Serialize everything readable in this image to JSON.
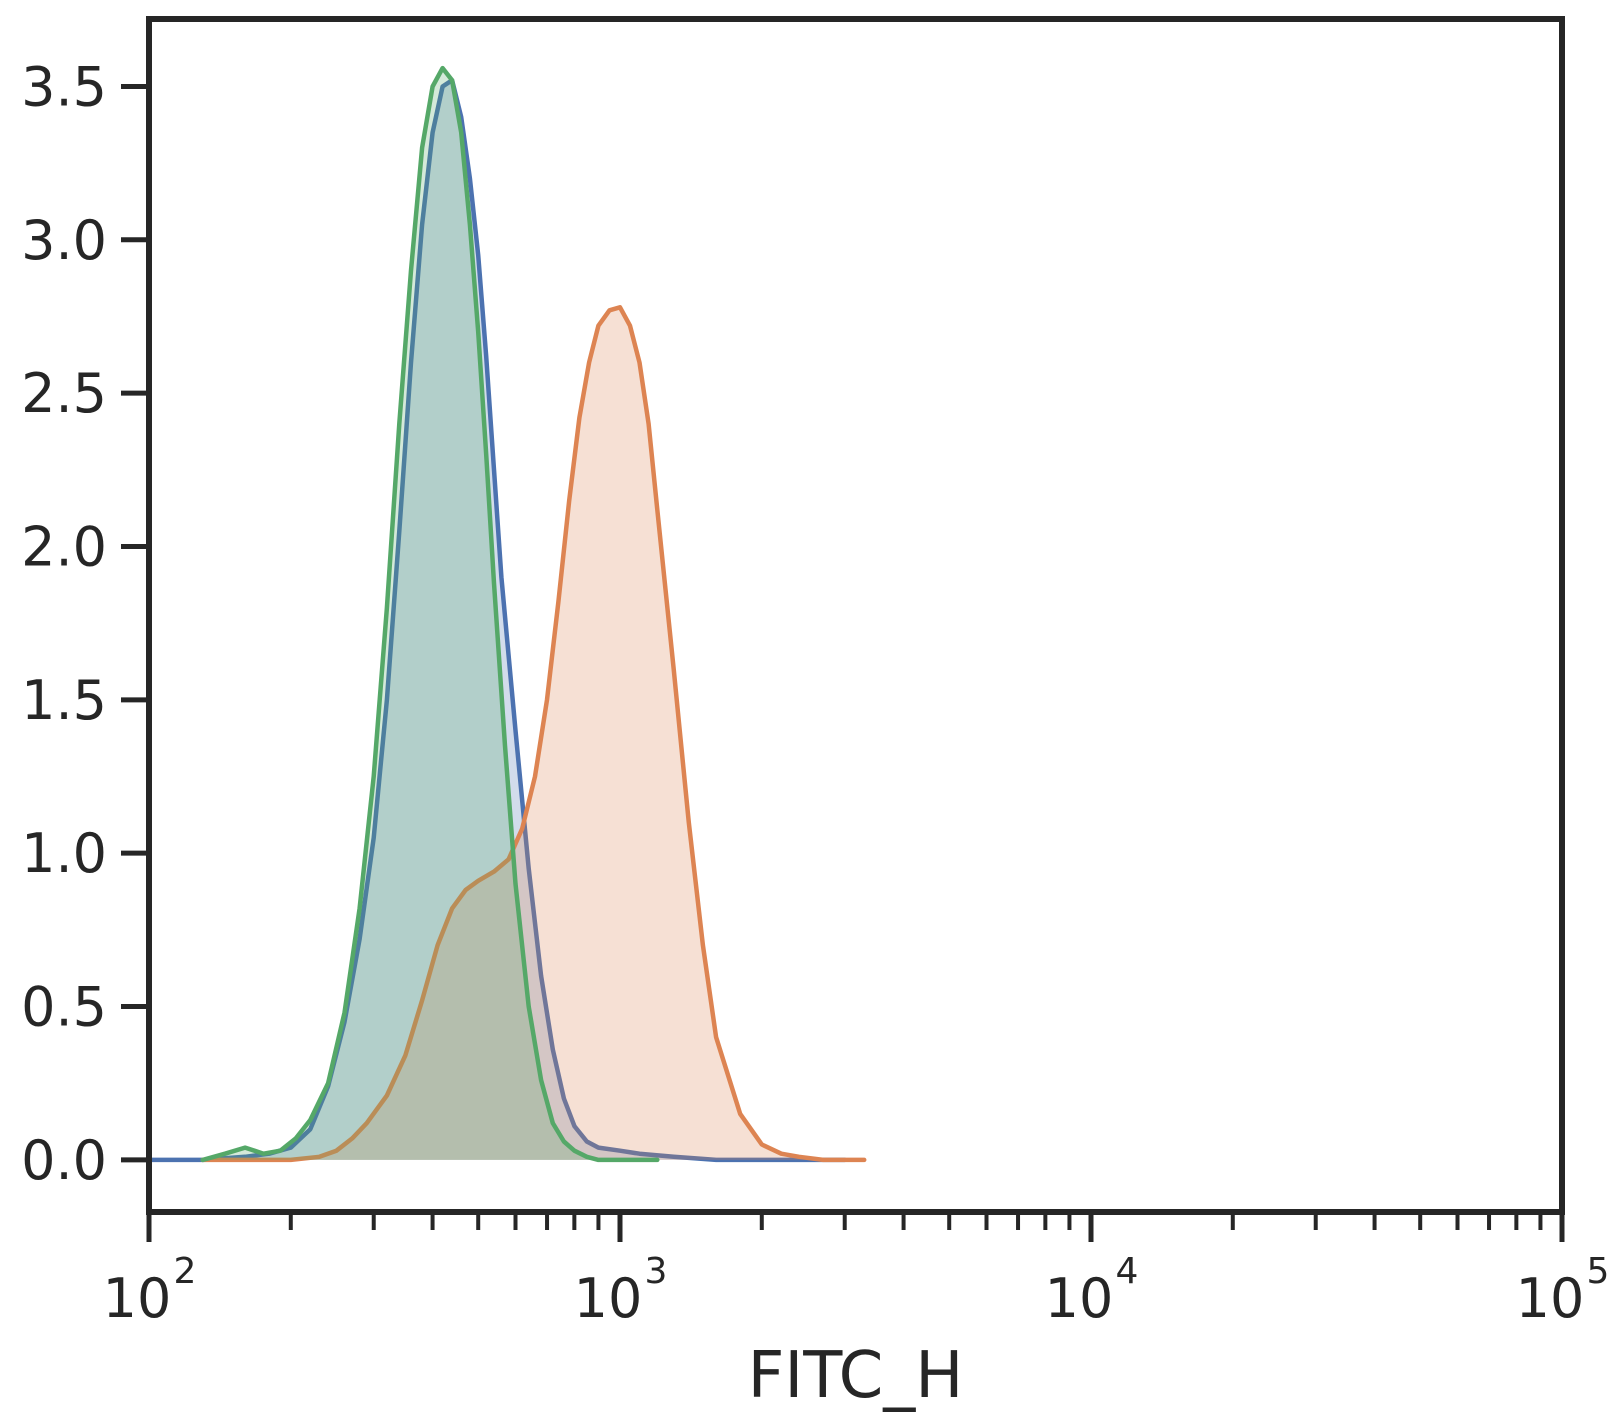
{
  "chart_data": {
    "type": "area",
    "title": "",
    "xlabel": "FITC_H",
    "ylabel": "",
    "xscale": "log",
    "xlim": [
      100,
      100000
    ],
    "ylim": [
      -0.17,
      3.72
    ],
    "grid": false,
    "legend": "none",
    "y_ticks": [
      {
        "value": 0.0,
        "label": "0.0"
      },
      {
        "value": 0.5,
        "label": "0.5"
      },
      {
        "value": 1.0,
        "label": "1.0"
      },
      {
        "value": 1.5,
        "label": "1.5"
      },
      {
        "value": 2.0,
        "label": "2.0"
      },
      {
        "value": 2.5,
        "label": "2.5"
      },
      {
        "value": 3.0,
        "label": "3.0"
      },
      {
        "value": 3.5,
        "label": "3.5"
      }
    ],
    "x_major_ticks": [
      {
        "value": 100,
        "base": "10",
        "exp": "2"
      },
      {
        "value": 1000,
        "base": "10",
        "exp": "3"
      },
      {
        "value": 10000,
        "base": "10",
        "exp": "4"
      },
      {
        "value": 100000,
        "base": "10",
        "exp": "5"
      }
    ],
    "series": [
      {
        "color": "#4c72b0",
        "x": [
          100,
          130,
          160,
          180,
          200,
          220,
          240,
          260,
          280,
          300,
          320,
          340,
          360,
          380,
          400,
          420,
          440,
          460,
          480,
          500,
          520,
          540,
          560,
          600,
          640,
          680,
          720,
          760,
          800,
          850,
          900,
          1000,
          1100,
          1300,
          1600,
          2000,
          2500,
          3000
        ],
        "y": [
          0.0,
          0.0,
          0.01,
          0.02,
          0.04,
          0.1,
          0.24,
          0.45,
          0.72,
          1.05,
          1.5,
          2.05,
          2.6,
          3.05,
          3.35,
          3.5,
          3.52,
          3.4,
          3.2,
          2.95,
          2.62,
          2.25,
          1.9,
          1.4,
          0.95,
          0.6,
          0.36,
          0.2,
          0.11,
          0.06,
          0.04,
          0.03,
          0.02,
          0.01,
          0.0,
          0.0,
          0.0,
          0.0
        ]
      },
      {
        "color": "#dd8452",
        "x": [
          130,
          200,
          230,
          250,
          270,
          290,
          320,
          350,
          380,
          410,
          440,
          470,
          500,
          540,
          580,
          620,
          660,
          700,
          740,
          780,
          820,
          860,
          900,
          950,
          1000,
          1050,
          1100,
          1150,
          1200,
          1300,
          1400,
          1500,
          1600,
          1800,
          2000,
          2200,
          2400,
          2700,
          3000,
          3300
        ],
        "y": [
          0.0,
          0.0,
          0.01,
          0.03,
          0.07,
          0.12,
          0.21,
          0.34,
          0.52,
          0.7,
          0.82,
          0.88,
          0.91,
          0.94,
          0.98,
          1.08,
          1.25,
          1.5,
          1.82,
          2.15,
          2.42,
          2.6,
          2.72,
          2.77,
          2.78,
          2.72,
          2.6,
          2.4,
          2.12,
          1.6,
          1.1,
          0.7,
          0.4,
          0.15,
          0.05,
          0.02,
          0.01,
          0.0,
          0.0,
          0.0
        ]
      },
      {
        "color": "#55a868",
        "x": [
          130,
          145,
          160,
          175,
          190,
          205,
          220,
          240,
          260,
          280,
          300,
          320,
          340,
          360,
          380,
          400,
          420,
          440,
          460,
          480,
          500,
          520,
          540,
          570,
          600,
          640,
          680,
          720,
          760,
          800,
          850,
          900,
          950,
          1000,
          1100,
          1200
        ],
        "y": [
          0.0,
          0.02,
          0.04,
          0.02,
          0.03,
          0.07,
          0.13,
          0.25,
          0.48,
          0.82,
          1.25,
          1.8,
          2.4,
          2.9,
          3.3,
          3.5,
          3.56,
          3.52,
          3.35,
          3.05,
          2.7,
          2.3,
          1.88,
          1.35,
          0.9,
          0.5,
          0.26,
          0.12,
          0.06,
          0.03,
          0.01,
          0.0,
          0.0,
          0.0,
          0.0,
          0.0
        ]
      }
    ]
  }
}
